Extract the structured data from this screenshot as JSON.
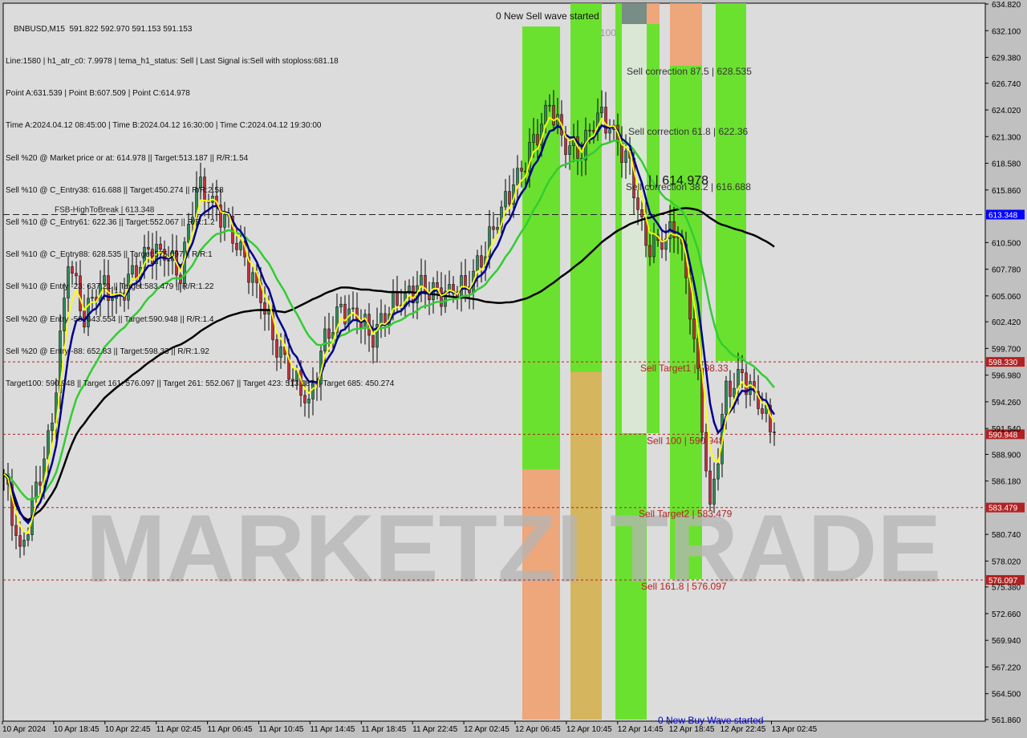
{
  "symbol_header": "BNBUSD,M15  591.822 592.970 591.153 591.153",
  "info_lines": [
    "Line:1580 | h1_atr_c0: 7.9978 | tema_h1_status: Sell | Last Signal is:Sell with stoploss:681.18",
    "Point A:631.539 | Point B:607.509 | Point C:614.978",
    "Time A:2024.04.12 08:45:00 | Time B:2024.04.12 16:30:00 | Time C:2024.04.12 19:30:00",
    "Sell %20 @ Market price or at: 614.978 || Target:513.187 || R/R:1.54",
    "Sell %10 @ C_Entry38: 616.688 || Target:450.274 || R/R:2.58",
    "Sell %10 @ C_Entry61: 622.36 || Target:552.067 || R/R:1.2",
    "Sell %10 @ C_Entry88: 628.535 || Target:576.097 || R/R:1",
    "Sell %10 @ Entry -23: 637.21 || Target:583.479 || R/R:1.22",
    "Sell %20 @ Entry -50: 643.554 || Target:590.948 || R/R:1.4",
    "Sell %20 @ Entry -88: 652.83 || Target:598.33 || R/R:1.92",
    "Target100: 590.948 || Target 161: 576.097 || Target 261: 552.067 || Target 423: 513.187 || Target 685: 450.274"
  ],
  "chart_data": {
    "type": "candlestick",
    "title": "BNBUSD,M15",
    "ylim": [
      561.86,
      634.82
    ],
    "y_ticks": [
      "634.820",
      "632.100",
      "629.380",
      "626.740",
      "624.020",
      "621.300",
      "618.580",
      "615.860",
      "610.500",
      "607.780",
      "605.060",
      "602.420",
      "599.700",
      "596.980",
      "594.260",
      "591.540",
      "588.900",
      "586.180",
      "580.740",
      "578.020",
      "575.380",
      "572.660",
      "569.940",
      "567.220",
      "564.500",
      "561.860"
    ],
    "y_tick_values": [
      634.82,
      632.1,
      629.38,
      626.74,
      624.02,
      621.3,
      618.58,
      615.86,
      610.5,
      607.78,
      605.06,
      602.42,
      599.7,
      596.98,
      594.26,
      591.54,
      588.9,
      586.18,
      580.74,
      578.02,
      575.38,
      572.66,
      569.94,
      567.22,
      564.5,
      561.86
    ],
    "x_ticks": [
      "10 Apr 2024",
      "10 Apr 18:45",
      "10 Apr 22:45",
      "11 Apr 02:45",
      "11 Apr 06:45",
      "11 Apr 10:45",
      "11 Apr 14:45",
      "11 Apr 18:45",
      "11 Apr 22:45",
      "12 Apr 02:45",
      "12 Apr 06:45",
      "12 Apr 10:45",
      "12 Apr 14:45",
      "12 Apr 18:45",
      "12 Apr 22:45",
      "13 Apr 02:45"
    ],
    "closes_every_4_bars": [
      586.9,
      578.5,
      585,
      592,
      609,
      603,
      606.5,
      604.5,
      607,
      609.5,
      609.5,
      607.5,
      616.5,
      614.5,
      612,
      608.5,
      605,
      600,
      597,
      594,
      600.5,
      603.5,
      603,
      601,
      604,
      605,
      606,
      605,
      605.5,
      606.5,
      610,
      614,
      617,
      620.5,
      624.5,
      620.5,
      620,
      623.8,
      621.5,
      618,
      610,
      610.7,
      612.3,
      601,
      583,
      595.2,
      596.8,
      594.3,
      591.153
    ],
    "levels": [
      {
        "price": 613.348,
        "label": "613.348",
        "color": "#0000ff",
        "style": "dashed-black",
        "text": "FSB-HighToBreak | 613.348"
      },
      {
        "price": 598.33,
        "label": "598.330",
        "color": "#b22222",
        "text": "Sell Target1 | 598.33"
      },
      {
        "price": 590.948,
        "label": "590.948",
        "color": "#b22222",
        "text": "Sell 100 | 590.948"
      },
      {
        "price": 583.479,
        "label": "583.479",
        "color": "#b22222",
        "text": "Sell Target2 | 583.479"
      },
      {
        "price": 576.097,
        "label": "576.097",
        "color": "#b22222",
        "text": "Sell 161.8 | 576.097"
      }
    ],
    "annotations": {
      "sell_wave": "0 New Sell wave started",
      "buy_wave": "0 New Buy Wave started",
      "corr_875": "Sell correction 87.5 | 628.535",
      "corr_618": "Sell correction 61.8 | 622.36",
      "corr_382": "Sell correction 38.2 | 616.688",
      "point_c": "| | 614.978",
      "hundred": "100"
    },
    "watermark": "MARKETZI TRADE",
    "colors": {
      "bull": "#2e8b57",
      "bear": "#c0303a",
      "ma_slow": "#000000",
      "ma_fast": "#00008b",
      "ma_yellow": "#ffff00",
      "ma_green": "#32cd32",
      "zone_green": "#5ee11c",
      "zone_orange": "#f0a070"
    }
  }
}
